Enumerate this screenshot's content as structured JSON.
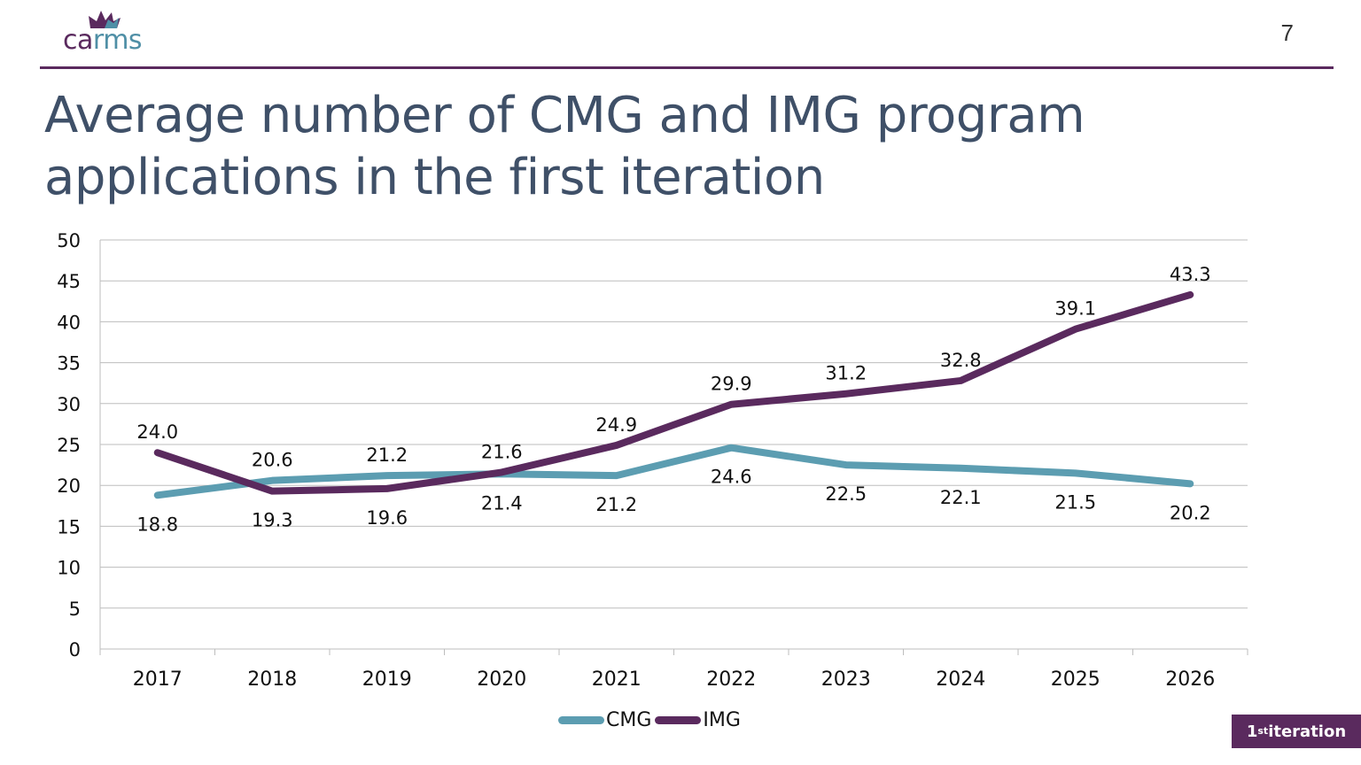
{
  "header": {
    "logo_ca": "ca",
    "logo_rms": "rms",
    "page_number": "7",
    "rule_color": "#5a2a5e"
  },
  "title": "Average number of CMG and IMG program applications in the first iteration",
  "badge": {
    "number": "1",
    "suffix": "st",
    "label": " iteration"
  },
  "chart_data": {
    "type": "line",
    "title": "",
    "xlabel": "",
    "ylabel": "",
    "categories": [
      "2017",
      "2018",
      "2019",
      "2020",
      "2021",
      "2022",
      "2023",
      "2024",
      "2025",
      "2026"
    ],
    "ylim": [
      0,
      50
    ],
    "yticks": [
      0,
      5,
      10,
      15,
      20,
      25,
      30,
      35,
      40,
      45,
      50
    ],
    "grid": true,
    "legend_position": "bottom",
    "series": [
      {
        "name": "CMG",
        "color": "#5c9db1",
        "values": [
          18.8,
          20.6,
          21.2,
          21.4,
          21.2,
          24.6,
          22.5,
          22.1,
          21.5,
          20.2
        ],
        "labels": [
          "18.8",
          "20.6",
          "21.2",
          "21.4",
          "21.2",
          "24.6",
          "22.5",
          "22.1",
          "21.5",
          "20.2"
        ]
      },
      {
        "name": "IMG",
        "color": "#5a2a5e",
        "values": [
          24.0,
          19.3,
          19.6,
          21.6,
          24.9,
          29.9,
          31.2,
          32.8,
          39.1,
          43.3
        ],
        "labels": [
          "24.0",
          "19.3",
          "19.6",
          "21.6",
          "24.9",
          "29.9",
          "31.2",
          "32.8",
          "39.1",
          "43.3"
        ]
      }
    ]
  }
}
